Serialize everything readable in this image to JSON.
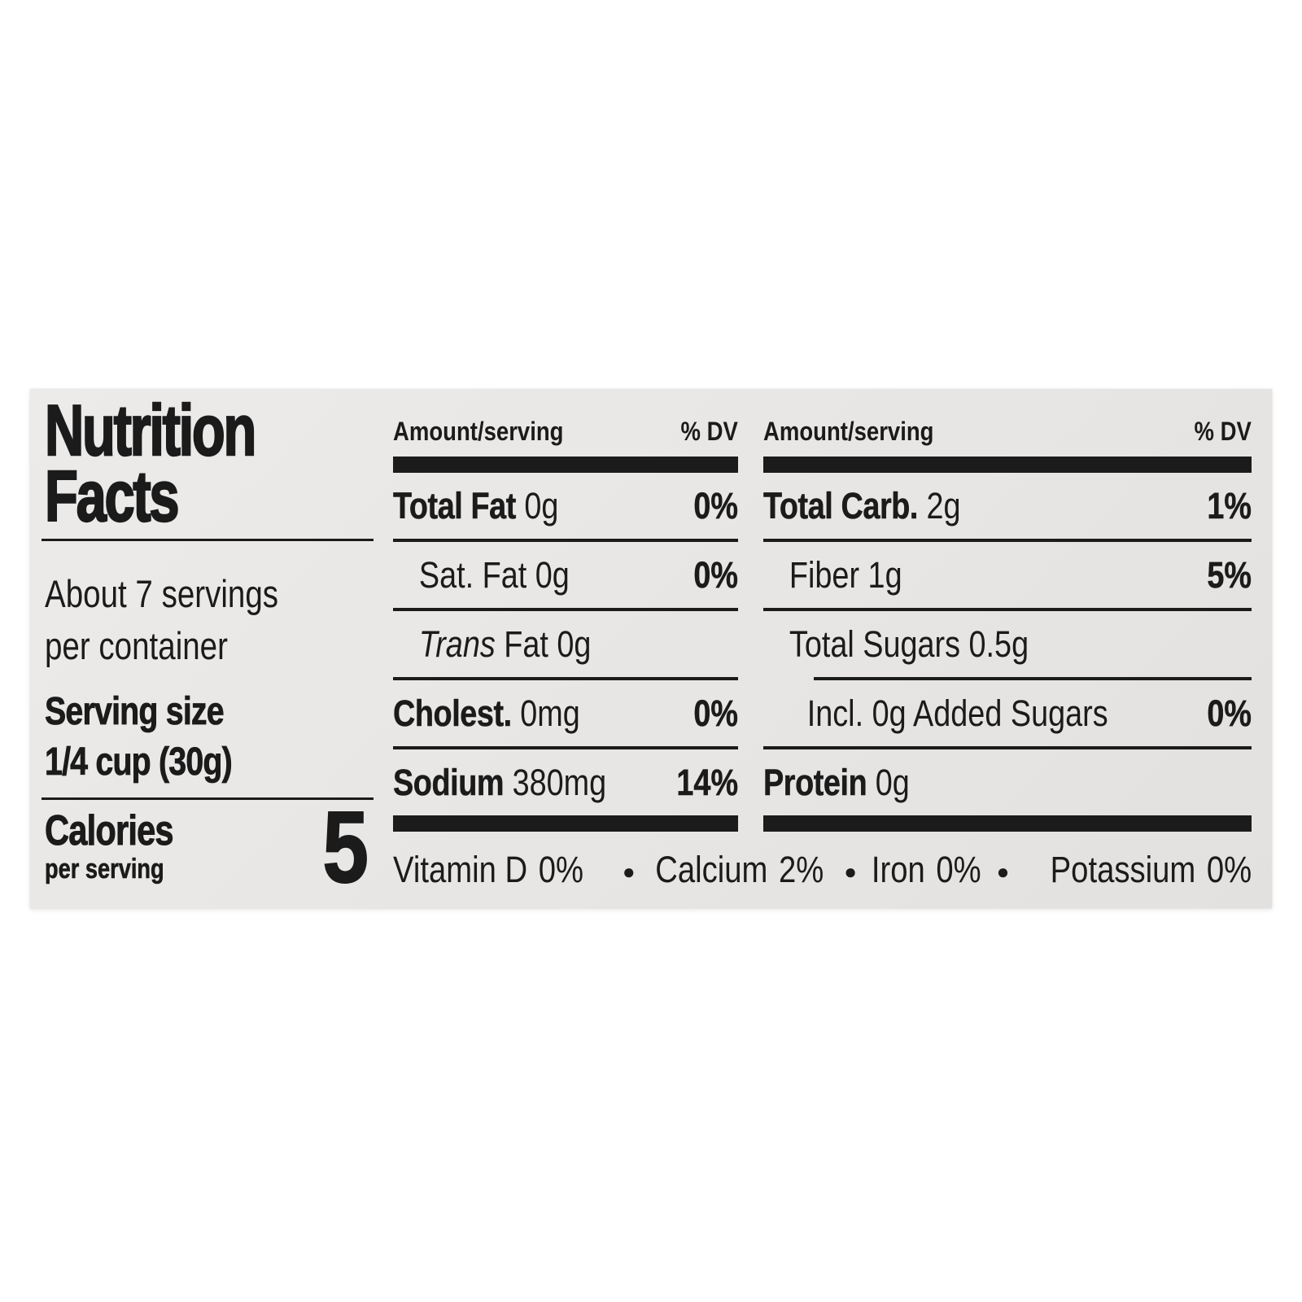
{
  "label": {
    "title_line1": "Nutrition",
    "title_line2": "Facts",
    "servings_line1": "About 7 servings",
    "servings_line2": "per container",
    "serving_size_label": "Serving size",
    "serving_size_value": "1/4 cup (30g)",
    "calories_label": "Calories",
    "calories_sublabel": "per serving",
    "calories_value": "5",
    "columns": [
      {
        "header_amount": "Amount/serving",
        "header_dv": "% DV",
        "rows": [
          {
            "bold": "Total Fat",
            "italic": "",
            "reg": " 0g",
            "dv": "0%"
          },
          {
            "bold": "",
            "italic": "",
            "reg": "Sat. Fat 0g",
            "dv": "0%"
          },
          {
            "bold": "",
            "italic": "Trans",
            "reg": " Fat 0g",
            "dv": ""
          },
          {
            "bold": "Cholest.",
            "italic": "",
            "reg": " 0mg",
            "dv": "0%"
          },
          {
            "bold": "Sodium",
            "italic": "",
            "reg": " 380mg",
            "dv": "14%"
          }
        ]
      },
      {
        "header_amount": "Amount/serving",
        "header_dv": "% DV",
        "rows": [
          {
            "bold": "Total Carb.",
            "italic": "",
            "reg": " 2g",
            "dv": "1%"
          },
          {
            "bold": "",
            "italic": "",
            "reg": "Fiber 1g",
            "dv": "5%"
          },
          {
            "bold": "",
            "italic": "",
            "reg": "Total Sugars 0.5g",
            "dv": ""
          },
          {
            "bold": "",
            "italic": "",
            "reg": "Incl. 0g Added Sugars",
            "dv": "0%"
          },
          {
            "bold": "Protein",
            "italic": "",
            "reg": " 0g",
            "dv": ""
          }
        ]
      }
    ],
    "micronutrients": [
      {
        "name": "Vitamin D",
        "value": "0%"
      },
      {
        "name": "Calcium",
        "value": "2%"
      },
      {
        "name": "Iron",
        "value": "0%"
      },
      {
        "name": "Potassium",
        "value": "0%"
      }
    ],
    "bullet": "●"
  },
  "colors": {
    "ink": "#1b1b1b",
    "label_background": "#e8e6e4",
    "page_background": "#ffffff"
  }
}
